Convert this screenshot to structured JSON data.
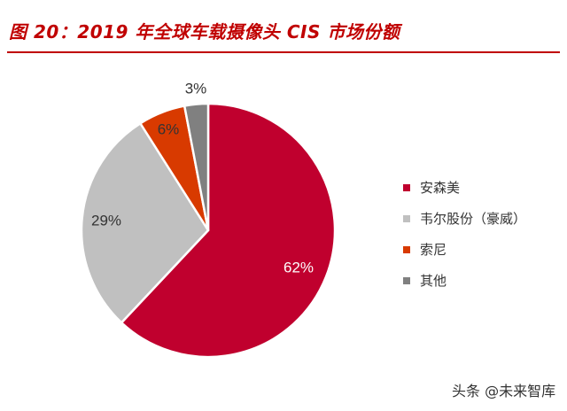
{
  "header": {
    "title": "图 20：2019 年全球车载摄像头 CIS 市场份额"
  },
  "chart_data": {
    "type": "pie",
    "title": "",
    "unit": "%",
    "slices": [
      {
        "name": "安森美",
        "value": 62,
        "label": "62%",
        "color": "#c0002e"
      },
      {
        "name": "韦尔股份（豪威）",
        "value": 29,
        "label": "29%",
        "color": "#c0c0c0"
      },
      {
        "name": "索尼",
        "value": 6,
        "label": "6%",
        "color": "#d83a00"
      },
      {
        "name": "其他",
        "value": 3,
        "label": "3%",
        "color": "#808080"
      }
    ],
    "legend_position": "right"
  },
  "watermark": {
    "text": "头条 @未来智库"
  }
}
